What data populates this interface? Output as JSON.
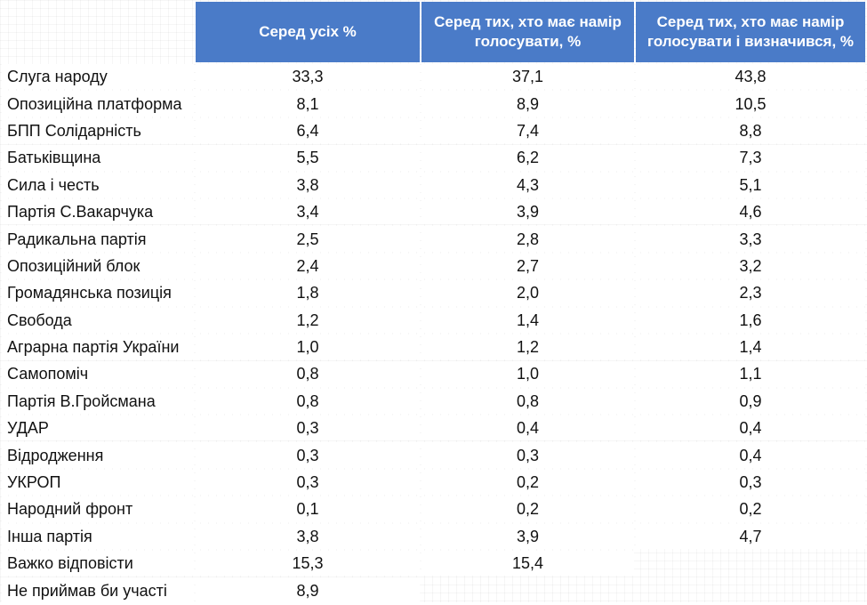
{
  "header": {
    "col1": "Серед усіх %",
    "col2": "Серед тих, хто має намір голосувати, %",
    "col3": "Серед тих, хто має намір голосувати і визначився, %"
  },
  "rows": [
    {
      "name": "Слуга народу",
      "v1": "33,3",
      "v2": "37,1",
      "v3": "43,8"
    },
    {
      "name": "Опозиційна платформа",
      "v1": "8,1",
      "v2": "8,9",
      "v3": "10,5"
    },
    {
      "name": "БПП Солідарність",
      "v1": "6,4",
      "v2": "7,4",
      "v3": "8,8"
    },
    {
      "name": "Батьківщина",
      "v1": "5,5",
      "v2": "6,2",
      "v3": "7,3"
    },
    {
      "name": "Сила і честь",
      "v1": "3,8",
      "v2": "4,3",
      "v3": "5,1"
    },
    {
      "name": "Партія С.Вакарчука",
      "v1": "3,4",
      "v2": "3,9",
      "v3": "4,6"
    },
    {
      "name": "Радикальна партія",
      "v1": "2,5",
      "v2": "2,8",
      "v3": "3,3"
    },
    {
      "name": "Опозиційний блок",
      "v1": "2,4",
      "v2": "2,7",
      "v3": "3,2"
    },
    {
      "name": "Громадянська позиція",
      "v1": "1,8",
      "v2": "2,0",
      "v3": "2,3"
    },
    {
      "name": "Свобода",
      "v1": "1,2",
      "v2": "1,4",
      "v3": "1,6"
    },
    {
      "name": "Аграрна партія України",
      "v1": "1,0",
      "v2": "1,2",
      "v3": "1,4"
    },
    {
      "name": "Самопоміч",
      "v1": "0,8",
      "v2": "1,0",
      "v3": "1,1"
    },
    {
      "name": "Партія В.Гройсмана",
      "v1": "0,8",
      "v2": "0,8",
      "v3": "0,9"
    },
    {
      "name": "УДАР",
      "v1": "0,3",
      "v2": "0,4",
      "v3": "0,4"
    },
    {
      "name": "Відродження",
      "v1": "0,3",
      "v2": "0,3",
      "v3": "0,4"
    },
    {
      "name": "УКРОП",
      "v1": "0,3",
      "v2": "0,2",
      "v3": "0,3"
    },
    {
      "name": "Народний фронт",
      "v1": "0,1",
      "v2": "0,2",
      "v3": "0,2"
    },
    {
      "name": "Інша партія",
      "v1": "3,8",
      "v2": "3,9",
      "v3": "4,7"
    },
    {
      "name": "Важко відповісти",
      "v1": "15,3",
      "v2": "15,4",
      "v3": null
    },
    {
      "name": "Не приймав би участі",
      "v1": "8,9",
      "v2": null,
      "v3": null
    }
  ],
  "colors": {
    "header_bg": "#4a7bc8",
    "header_text": "#ffffff",
    "cell_bg": "#ffffff"
  }
}
